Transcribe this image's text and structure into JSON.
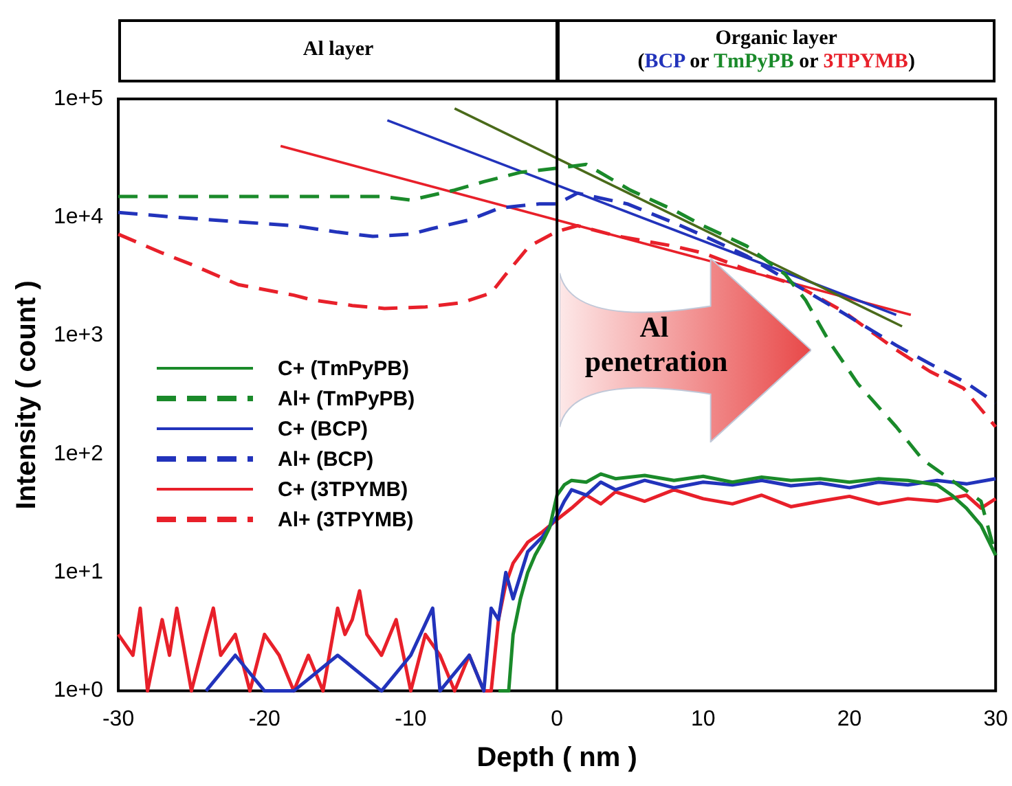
{
  "chart_data": {
    "type": "line",
    "xlabel": "Depth ( nm )",
    "ylabel": "Intensity ( count )",
    "annotations": [
      "Al layer",
      "Organic layer",
      "(BCP or TmPyPB or 3TPYMB)",
      "Al penetration"
    ],
    "log": "y",
    "xlim": [
      -30,
      30
    ],
    "xticks": [
      -30,
      -20,
      -10,
      0,
      10,
      20,
      30
    ],
    "ylim": [
      1,
      100000
    ],
    "yticks": [
      {
        "value": 1,
        "label": "1e+0"
      },
      {
        "value": 10,
        "label": "1e+1"
      },
      {
        "value": 100,
        "label": "1e+2"
      },
      {
        "value": 1000,
        "label": "1e+3"
      },
      {
        "value": 10000,
        "label": "1e+4"
      },
      {
        "value": 100000,
        "label": "1e+5"
      }
    ],
    "grid": false,
    "legend": "left",
    "marker": "none",
    "ref_lines": [
      {
        "axis": "x",
        "value": 0,
        "color": "#000000",
        "line_style": "solid"
      }
    ],
    "series": [
      {
        "name": "C+ (TmPyPB)",
        "color": "#1a8a2a",
        "line_style": "solid",
        "x": [
          -4,
          -3.5,
          -3.3,
          -3,
          -2.5,
          -2,
          -1.5,
          -1,
          -0.5,
          0,
          0.5,
          1,
          2,
          3,
          4,
          6,
          8,
          10,
          12,
          14,
          16,
          18,
          20,
          22,
          24,
          26,
          27,
          28,
          29,
          30
        ],
        "values": [
          1,
          1,
          1,
          3,
          6,
          10,
          14,
          18,
          24,
          45,
          55,
          60,
          58,
          68,
          62,
          66,
          60,
          65,
          58,
          64,
          60,
          62,
          58,
          62,
          60,
          55,
          45,
          35,
          25,
          14
        ]
      },
      {
        "name": "Al+ (TmPyPB)",
        "color": "#1a8a2a",
        "line_style": "dashed",
        "x": [
          -30,
          -25,
          -20,
          -15,
          -12,
          -10,
          -7,
          -5,
          -2.5,
          0,
          2,
          5,
          8,
          10,
          13,
          15.6,
          17,
          18.6,
          20.6,
          23.2,
          25,
          27,
          29,
          30
        ],
        "values": [
          15000,
          15000,
          15000,
          15000,
          15000,
          14000,
          17000,
          20000,
          24000,
          26000,
          28000,
          17000,
          11500,
          8500,
          5700,
          3300,
          2000,
          900,
          390,
          170,
          90,
          60,
          40,
          14
        ]
      },
      {
        "name": "C+ (BCP)",
        "color": "#2233bb",
        "line_style": "solid",
        "x": [
          -24,
          -22,
          -20,
          -18,
          -15,
          -12,
          -10,
          -8.5,
          -8,
          -6,
          -5,
          -4.5,
          -4,
          -3.5,
          -3,
          -2,
          -1,
          0,
          0.5,
          1,
          2,
          3,
          4,
          6,
          8,
          10,
          12,
          14,
          16,
          18,
          20,
          22,
          24,
          26,
          28,
          30
        ],
        "values": [
          1,
          2,
          1,
          1,
          2,
          1,
          2,
          5,
          1,
          2,
          1,
          5,
          4,
          10,
          6,
          15,
          20,
          30,
          40,
          50,
          45,
          58,
          50,
          60,
          52,
          58,
          55,
          60,
          54,
          57,
          52,
          58,
          55,
          60,
          56,
          62
        ]
      },
      {
        "name": "Al+ (BCP)",
        "color": "#2233bb",
        "line_style": "dashed",
        "x": [
          -30,
          -26,
          -22,
          -18,
          -15,
          -12.6,
          -10,
          -8.6,
          -6,
          -3.9,
          -1.2,
          0,
          1.4,
          4.8,
          8,
          10,
          13,
          16.3,
          19.6,
          23.2,
          25.5,
          28,
          30
        ],
        "values": [
          11000,
          10000,
          9200,
          8500,
          7500,
          6900,
          7200,
          8000,
          9500,
          12000,
          13000,
          13000,
          16000,
          13000,
          9000,
          7000,
          4700,
          2700,
          1550,
          830,
          580,
          400,
          270
        ]
      },
      {
        "name": "C+ (3TPYMB)",
        "color": "#e8202a",
        "line_style": "solid",
        "x": [
          -30,
          -29,
          -28.5,
          -28,
          -27,
          -26.5,
          -26,
          -25,
          -24,
          -23.5,
          -23,
          -22,
          -21,
          -20,
          -19,
          -18,
          -17,
          -16,
          -15,
          -14.5,
          -14,
          -13.5,
          -13,
          -12,
          -11,
          -10,
          -9,
          -8,
          -7,
          -6,
          -5,
          -4.5,
          -4,
          -3.5,
          -3,
          -2,
          -1,
          0,
          1,
          2,
          3,
          4,
          6,
          8,
          10,
          12,
          14,
          16,
          18,
          20,
          22,
          24,
          26,
          28,
          29,
          30
        ],
        "values": [
          3,
          2,
          5,
          1,
          4,
          2,
          5,
          1,
          3,
          5,
          2,
          3,
          1,
          3,
          2,
          1,
          2,
          1,
          5,
          3,
          4,
          7,
          3,
          2,
          4,
          1,
          3,
          2,
          1,
          2,
          1,
          1,
          4,
          8,
          12,
          18,
          22,
          28,
          35,
          45,
          38,
          48,
          40,
          50,
          42,
          38,
          45,
          36,
          40,
          44,
          38,
          42,
          40,
          45,
          35,
          42
        ]
      },
      {
        "name": "Al+ (3TPYMB)",
        "color": "#e8202a",
        "line_style": "dashed",
        "x": [
          -30,
          -27,
          -25,
          -21.8,
          -18,
          -16.7,
          -14,
          -11.8,
          -9,
          -6.5,
          -4.5,
          -3.5,
          -1.9,
          0,
          1.4,
          4,
          8,
          10,
          13,
          16.3,
          19.6,
          23.2,
          25.5,
          27.8,
          30
        ],
        "values": [
          7200,
          5000,
          4000,
          2700,
          2200,
          2000,
          1800,
          1700,
          1750,
          1900,
          2300,
          3300,
          5700,
          7600,
          8500,
          7000,
          5700,
          5000,
          3600,
          2700,
          1600,
          760,
          500,
          360,
          170
        ]
      },
      {
        "type": "line",
        "color": "#4a6a1a",
        "line_style": "solid",
        "x": [
          -7,
          23.6
        ],
        "values": [
          83000,
          1200
        ]
      },
      {
        "type": "line",
        "color": "#2233bb",
        "line_style": "solid",
        "x": [
          -11.6,
          23.2
        ],
        "values": [
          66000,
          1500
        ]
      },
      {
        "type": "line",
        "color": "#e8202a",
        "line_style": "solid",
        "x": [
          -18.9,
          24.2
        ],
        "values": [
          40000,
          1500
        ]
      }
    ]
  }
}
